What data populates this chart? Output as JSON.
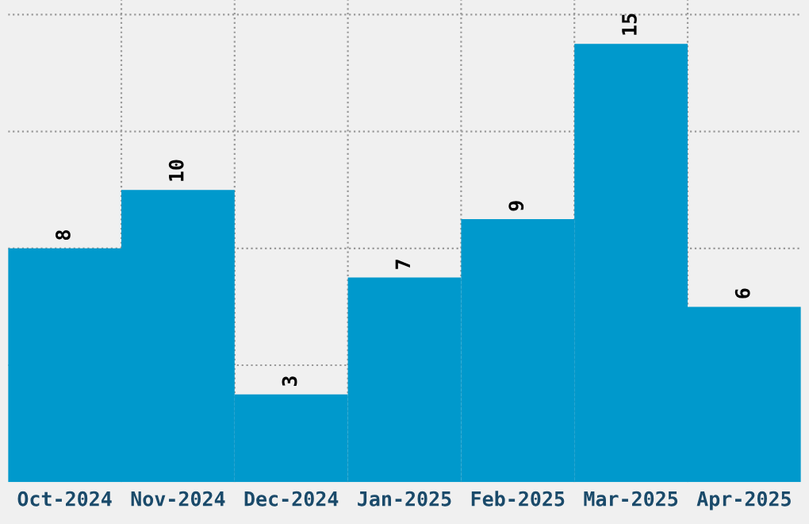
{
  "chart_data": {
    "type": "bar",
    "categories": [
      "Oct-2024",
      "Nov-2024",
      "Dec-2024",
      "Jan-2025",
      "Feb-2025",
      "Mar-2025",
      "Apr-2025"
    ],
    "values": [
      8,
      10,
      3,
      7,
      9,
      15,
      6
    ],
    "color": "#0099cc",
    "ylim": [
      0,
      16.5
    ],
    "yticks": [
      {
        "value": 4,
        "label": null
      },
      {
        "value": 8,
        "label": null
      },
      {
        "value": 12,
        "label": null
      },
      {
        "value": 16,
        "label": null
      }
    ],
    "tick_labels": "x",
    "grid": true,
    "data_labels": true
  }
}
